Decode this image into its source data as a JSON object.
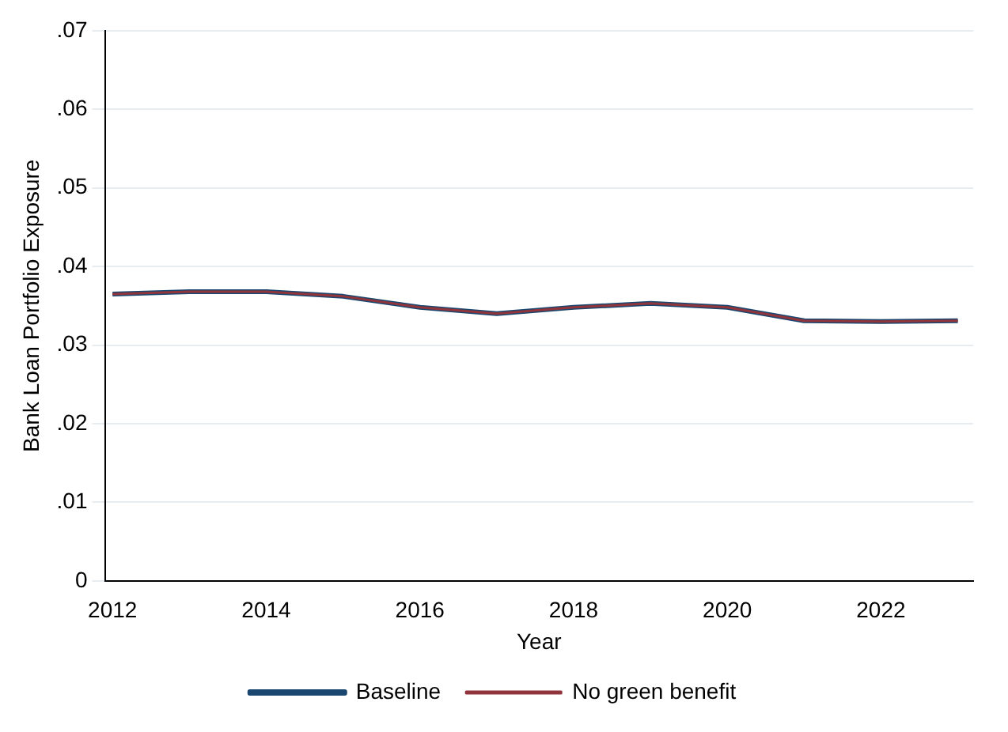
{
  "chart_data": {
    "type": "line",
    "xlabel": "Year",
    "ylabel": "Bank Loan Portfolio Exposure",
    "x": [
      2012,
      2013,
      2014,
      2015,
      2016,
      2017,
      2018,
      2019,
      2020,
      2021,
      2022,
      2023
    ],
    "series": [
      {
        "name": "Baseline",
        "color": "#1a476f",
        "values": [
          0.0365,
          0.0368,
          0.0368,
          0.0362,
          0.0348,
          0.034,
          0.0348,
          0.0353,
          0.0348,
          0.0331,
          0.033,
          0.0331
        ]
      },
      {
        "name": "No green benefit",
        "color": "#90353b",
        "values": [
          0.0365,
          0.0368,
          0.0368,
          0.0362,
          0.0348,
          0.034,
          0.0348,
          0.0353,
          0.0348,
          0.0331,
          0.033,
          0.0331
        ]
      }
    ],
    "xlim": [
      2011.9,
      2023.2
    ],
    "xticks": [
      2012,
      2014,
      2016,
      2018,
      2020,
      2022
    ],
    "ylim": [
      0,
      0.07
    ],
    "yticks": [
      0,
      {
        "value": 0.01,
        "label": ".01"
      },
      {
        "value": 0.02,
        "label": ".02"
      },
      {
        "value": 0.03,
        "label": ".03"
      },
      {
        "value": 0.04,
        "label": ".04"
      },
      {
        "value": 0.05,
        "label": ".05"
      },
      {
        "value": 0.06,
        "label": ".06"
      },
      {
        "value": 0.07,
        "label": ".07"
      }
    ],
    "grid": "y",
    "legend": "bottom",
    "marker": "none",
    "line_style": "solid"
  }
}
